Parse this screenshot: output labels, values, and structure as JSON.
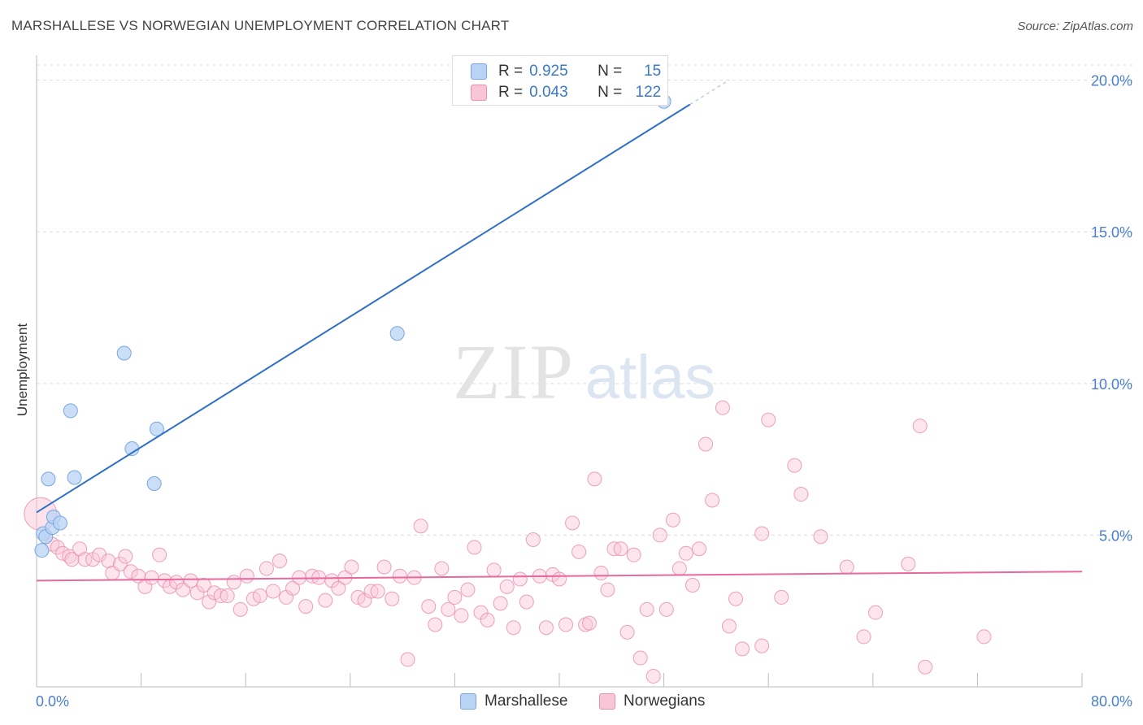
{
  "title": "MARSHALLESE VS NORWEGIAN UNEMPLOYMENT CORRELATION CHART",
  "source": "Source: ZipAtlas.com",
  "watermark": {
    "zip": "ZIP",
    "atlas": "atlas"
  },
  "legend_top": {
    "rows": [
      {
        "r_label": "R =",
        "r_value": "0.925",
        "n_label": "N =",
        "n_value": "15"
      },
      {
        "r_label": "R =",
        "r_value": "0.043",
        "n_label": "N =",
        "n_value": "122"
      }
    ]
  },
  "colors": {
    "marshallese_fill": "#b9d3f5",
    "marshallese_stroke": "#7aa6e0",
    "marshallese_line": "#2f6fca",
    "norwegian_fill": "#f9c6d6",
    "norwegian_stroke": "#eb8fae",
    "norwegian_line": "#e8699a"
  },
  "chart_data": {
    "type": "scatter",
    "title": "MARSHALLESE VS NORWEGIAN UNEMPLOYMENT CORRELATION CHART",
    "xlabel": "",
    "ylabel": "Unemployment",
    "xlim": [
      0,
      80
    ],
    "ylim": [
      0,
      20.5
    ],
    "x_tick_labels": [
      "0.0%",
      "80.0%"
    ],
    "y_ticks": [
      5,
      10,
      15,
      20
    ],
    "y_tick_labels": [
      "5.0%",
      "10.0%",
      "15.0%",
      "20.0%"
    ],
    "grid": true,
    "legend": [
      "Marshallese",
      "Norwegians"
    ],
    "series": [
      {
        "name": "Marshallese",
        "R": 0.925,
        "N": 15,
        "trend": {
          "x0": 0,
          "y0": 5.75,
          "x1": 50,
          "y1": 19.2,
          "dash_to_x": 53
        },
        "points": [
          [
            0.4,
            4.5
          ],
          [
            0.5,
            5.05
          ],
          [
            0.7,
            4.95
          ],
          [
            0.9,
            6.85
          ],
          [
            1.2,
            5.25
          ],
          [
            1.3,
            5.6
          ],
          [
            1.8,
            5.4
          ],
          [
            2.6,
            9.1
          ],
          [
            2.9,
            6.9
          ],
          [
            6.7,
            11.0
          ],
          [
            7.3,
            7.85
          ],
          [
            9.0,
            6.7
          ],
          [
            9.2,
            8.5
          ],
          [
            27.6,
            11.65
          ],
          [
            48.0,
            19.3
          ]
        ]
      },
      {
        "name": "Norwegians",
        "R": 0.043,
        "N": 122,
        "trend": {
          "x0": 0,
          "y0": 3.5,
          "x1": 80,
          "y1": 3.8
        },
        "points": [
          [
            0.3,
            5.7
          ],
          [
            1.2,
            4.7
          ],
          [
            1.6,
            4.6
          ],
          [
            2.0,
            4.4
          ],
          [
            2.5,
            4.3
          ],
          [
            2.7,
            4.2
          ],
          [
            3.3,
            4.55
          ],
          [
            3.7,
            4.2
          ],
          [
            4.3,
            4.2
          ],
          [
            4.8,
            4.35
          ],
          [
            5.5,
            4.15
          ],
          [
            5.8,
            3.75
          ],
          [
            6.4,
            4.05
          ],
          [
            6.8,
            4.3
          ],
          [
            7.2,
            3.8
          ],
          [
            7.8,
            3.65
          ],
          [
            8.3,
            3.3
          ],
          [
            8.8,
            3.6
          ],
          [
            9.4,
            4.35
          ],
          [
            9.8,
            3.5
          ],
          [
            10.2,
            3.3
          ],
          [
            10.7,
            3.45
          ],
          [
            11.2,
            3.2
          ],
          [
            11.8,
            3.5
          ],
          [
            12.3,
            3.1
          ],
          [
            12.8,
            3.35
          ],
          [
            13.2,
            2.8
          ],
          [
            13.6,
            3.1
          ],
          [
            14.1,
            3.0
          ],
          [
            14.6,
            3.0
          ],
          [
            15.1,
            3.45
          ],
          [
            15.6,
            2.55
          ],
          [
            16.1,
            3.65
          ],
          [
            16.6,
            2.9
          ],
          [
            17.1,
            3.0
          ],
          [
            17.6,
            3.9
          ],
          [
            18.1,
            3.15
          ],
          [
            18.6,
            4.15
          ],
          [
            19.1,
            2.95
          ],
          [
            19.6,
            3.25
          ],
          [
            20.1,
            3.6
          ],
          [
            20.6,
            2.65
          ],
          [
            21.1,
            3.65
          ],
          [
            21.6,
            3.6
          ],
          [
            22.1,
            2.85
          ],
          [
            22.6,
            3.5
          ],
          [
            23.1,
            3.25
          ],
          [
            23.6,
            3.6
          ],
          [
            24.1,
            3.95
          ],
          [
            24.6,
            2.95
          ],
          [
            25.1,
            2.85
          ],
          [
            25.6,
            3.15
          ],
          [
            26.1,
            3.15
          ],
          [
            26.6,
            3.95
          ],
          [
            27.2,
            2.9
          ],
          [
            27.8,
            3.65
          ],
          [
            28.4,
            0.9
          ],
          [
            28.9,
            3.6
          ],
          [
            29.4,
            5.3
          ],
          [
            30.0,
            2.65
          ],
          [
            30.5,
            2.05
          ],
          [
            31.0,
            3.9
          ],
          [
            31.5,
            2.55
          ],
          [
            32.0,
            2.95
          ],
          [
            32.5,
            2.35
          ],
          [
            33.0,
            3.2
          ],
          [
            33.5,
            4.6
          ],
          [
            34.0,
            2.45
          ],
          [
            34.5,
            2.2
          ],
          [
            35.0,
            3.85
          ],
          [
            35.5,
            2.75
          ],
          [
            36.0,
            3.3
          ],
          [
            36.5,
            1.95
          ],
          [
            37.0,
            3.55
          ],
          [
            37.5,
            2.8
          ],
          [
            38.0,
            4.85
          ],
          [
            38.5,
            3.65
          ],
          [
            39.0,
            1.95
          ],
          [
            39.5,
            3.7
          ],
          [
            40.0,
            3.55
          ],
          [
            40.5,
            2.05
          ],
          [
            41.0,
            5.4
          ],
          [
            41.5,
            4.45
          ],
          [
            42.0,
            2.05
          ],
          [
            42.3,
            2.1
          ],
          [
            42.7,
            6.85
          ],
          [
            43.2,
            3.75
          ],
          [
            43.7,
            3.2
          ],
          [
            44.2,
            4.55
          ],
          [
            44.7,
            4.55
          ],
          [
            45.2,
            1.8
          ],
          [
            45.7,
            4.35
          ],
          [
            46.2,
            0.95
          ],
          [
            46.7,
            2.55
          ],
          [
            47.2,
            0.35
          ],
          [
            47.7,
            5.0
          ],
          [
            48.2,
            2.55
          ],
          [
            48.7,
            5.5
          ],
          [
            49.2,
            3.9
          ],
          [
            49.7,
            4.4
          ],
          [
            50.2,
            3.35
          ],
          [
            50.7,
            4.55
          ],
          [
            51.2,
            8.0
          ],
          [
            51.7,
            6.15
          ],
          [
            52.5,
            9.2
          ],
          [
            53.0,
            2.0
          ],
          [
            53.5,
            2.9
          ],
          [
            54.0,
            1.25
          ],
          [
            55.5,
            1.35
          ],
          [
            55.5,
            5.05
          ],
          [
            56.0,
            8.8
          ],
          [
            57.0,
            2.95
          ],
          [
            58.0,
            7.3
          ],
          [
            58.5,
            6.35
          ],
          [
            60.0,
            4.95
          ],
          [
            62.0,
            3.95
          ],
          [
            63.3,
            1.65
          ],
          [
            64.2,
            2.45
          ],
          [
            66.7,
            4.05
          ],
          [
            67.6,
            8.6
          ],
          [
            68.0,
            0.65
          ],
          [
            72.5,
            1.65
          ]
        ]
      }
    ]
  },
  "bottom_legend": {
    "items": [
      "Marshallese",
      "Norwegians"
    ]
  }
}
